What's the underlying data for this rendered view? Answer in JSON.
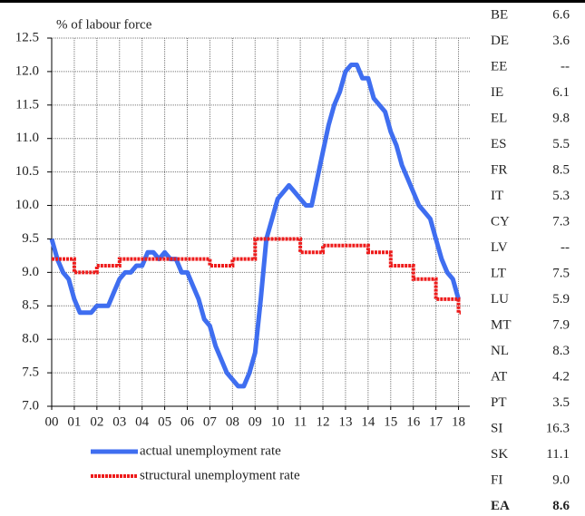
{
  "chart_data": {
    "type": "line",
    "annotation": "% of labour force",
    "xlim": [
      2000,
      2018.5
    ],
    "xticks": [
      {
        "value": 2000,
        "label": "00"
      },
      {
        "value": 2001,
        "label": "01"
      },
      {
        "value": 2002,
        "label": "02"
      },
      {
        "value": 2003,
        "label": "03"
      },
      {
        "value": 2004,
        "label": "04"
      },
      {
        "value": 2005,
        "label": "05"
      },
      {
        "value": 2006,
        "label": "06"
      },
      {
        "value": 2007,
        "label": "07"
      },
      {
        "value": 2008,
        "label": "08"
      },
      {
        "value": 2009,
        "label": "09"
      },
      {
        "value": 2010,
        "label": "10"
      },
      {
        "value": 2011,
        "label": "11"
      },
      {
        "value": 2012,
        "label": "12"
      },
      {
        "value": 2013,
        "label": "13"
      },
      {
        "value": 2014,
        "label": "14"
      },
      {
        "value": 2015,
        "label": "15"
      },
      {
        "value": 2016,
        "label": "16"
      },
      {
        "value": 2017,
        "label": "17"
      },
      {
        "value": 2018,
        "label": "18"
      }
    ],
    "ylim": [
      7,
      12.5
    ],
    "yticks": [
      {
        "value": 7,
        "label": "7.0"
      },
      7.5,
      {
        "value": 8,
        "label": "8.0"
      },
      8.5,
      {
        "value": 9,
        "label": "9.0"
      },
      9.5,
      {
        "value": 10,
        "label": "10.0"
      },
      10.5,
      {
        "value": 11,
        "label": "11.0"
      },
      11.5,
      {
        "value": 12,
        "label": "12.0"
      },
      12.5
    ],
    "grid": true,
    "series": [
      {
        "name": "actual unemployment rate",
        "color": "#3f6ef0",
        "x": [
          2000,
          2000.25,
          2000.5,
          2000.75,
          2001,
          2001.25,
          2001.5,
          2001.75,
          2002,
          2002.5,
          2002.75,
          2003,
          2003.25,
          2003.5,
          2003.75,
          2004,
          2004.25,
          2004.5,
          2004.75,
          2005,
          2005.25,
          2005.5,
          2005.75,
          2006,
          2006.25,
          2006.5,
          2006.75,
          2007,
          2007.25,
          2007.5,
          2007.75,
          2008,
          2008.25,
          2008.5,
          2008.75,
          2009,
          2009.25,
          2009.5,
          2009.75,
          2010,
          2010.25,
          2010.5,
          2010.75,
          2011,
          2011.25,
          2011.5,
          2011.75,
          2012,
          2012.25,
          2012.5,
          2012.75,
          2013,
          2013.25,
          2013.5,
          2013.75,
          2014,
          2014.25,
          2014.5,
          2014.75,
          2015,
          2015.25,
          2015.5,
          2015.75,
          2016,
          2016.25,
          2016.5,
          2016.75,
          2017,
          2017.25,
          2017.5,
          2017.75,
          2018
        ],
        "values": [
          9.5,
          9.2,
          9.0,
          8.9,
          8.6,
          8.4,
          8.4,
          8.4,
          8.5,
          8.5,
          8.7,
          8.9,
          9.0,
          9.0,
          9.1,
          9.1,
          9.3,
          9.3,
          9.2,
          9.3,
          9.2,
          9.2,
          9.0,
          9.0,
          8.8,
          8.6,
          8.3,
          8.2,
          7.9,
          7.7,
          7.5,
          7.4,
          7.3,
          7.3,
          7.5,
          7.8,
          8.6,
          9.5,
          9.8,
          10.1,
          10.2,
          10.3,
          10.2,
          10.1,
          10.0,
          10.0,
          10.4,
          10.8,
          11.2,
          11.5,
          11.7,
          12.0,
          12.1,
          12.1,
          11.9,
          11.9,
          11.6,
          11.5,
          11.4,
          11.1,
          10.9,
          10.6,
          10.4,
          10.2,
          10.0,
          9.9,
          9.8,
          9.5,
          9.2,
          9.0,
          8.9,
          8.6
        ]
      },
      {
        "name": "structural unemployment rate",
        "color": "#ee1c1c",
        "x": [
          2000,
          2001,
          2001,
          2002,
          2002,
          2003,
          2003,
          2007,
          2007,
          2008,
          2008,
          2009,
          2009,
          2011,
          2011,
          2012,
          2012,
          2014,
          2014,
          2015,
          2015,
          2016,
          2016,
          2017,
          2017,
          2018,
          2018,
          2018.1
        ],
        "values": [
          9.2,
          9.2,
          9.0,
          9.0,
          9.1,
          9.1,
          9.2,
          9.2,
          9.1,
          9.1,
          9.2,
          9.2,
          9.5,
          9.5,
          9.3,
          9.3,
          9.4,
          9.4,
          9.3,
          9.3,
          9.1,
          9.1,
          8.9,
          8.9,
          8.6,
          8.6,
          8.4,
          8.4
        ]
      }
    ]
  },
  "table": {
    "rows": [
      [
        "BE",
        "6.6"
      ],
      [
        "DE",
        "3.6"
      ],
      [
        "EE",
        "--"
      ],
      [
        "IE",
        "6.1"
      ],
      [
        "EL",
        "9.8"
      ],
      [
        "ES",
        "5.5"
      ],
      [
        "FR",
        "8.5"
      ],
      [
        "IT",
        "5.3"
      ],
      [
        "CY",
        "7.3"
      ],
      [
        "LV",
        "--"
      ],
      [
        "LT",
        "7.5"
      ],
      [
        "LU",
        "5.9"
      ],
      [
        "MT",
        "7.9"
      ],
      [
        "NL",
        "8.3"
      ],
      [
        "AT",
        "4.2"
      ],
      [
        "PT",
        "3.5"
      ],
      [
        "SI",
        "16.3"
      ],
      [
        "SK",
        "11.1"
      ],
      [
        "FI",
        "9.0"
      ],
      [
        "EA",
        "8.6"
      ]
    ]
  }
}
